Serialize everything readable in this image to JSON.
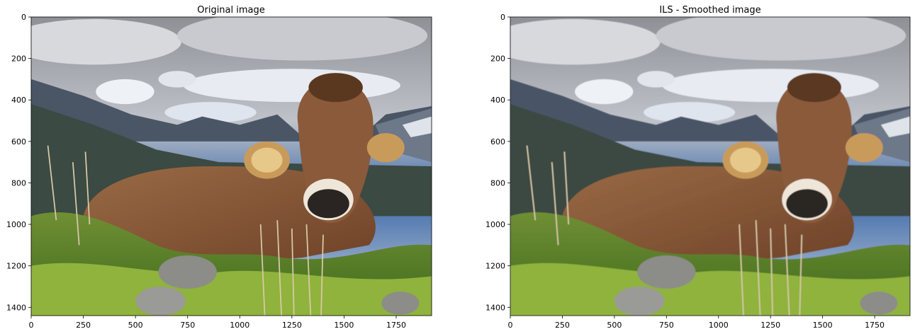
{
  "colors": {
    "sky_cloud": "#c9ccd2",
    "sky_blue": "#3f6aa8",
    "mountain": "#4a5566",
    "cow": "#8a5a3a",
    "grass": "#5f8a2a",
    "rock": "#8c8c88"
  },
  "chart_data": [
    {
      "type": "image",
      "title": "Original image",
      "xlim": [
        0,
        1920
      ],
      "ylim": [
        1440,
        0
      ],
      "xticks": [
        0,
        250,
        500,
        750,
        1000,
        1250,
        1500,
        1750
      ],
      "yticks": [
        0,
        200,
        400,
        600,
        800,
        1000,
        1200,
        1400
      ],
      "smoothed": false
    },
    {
      "type": "image",
      "title": "ILS - Smoothed image",
      "xlim": [
        0,
        1920
      ],
      "ylim": [
        1440,
        0
      ],
      "xticks": [
        0,
        250,
        500,
        750,
        1000,
        1250,
        1500,
        1750
      ],
      "yticks": [
        0,
        200,
        400,
        600,
        800,
        1000,
        1200,
        1400
      ],
      "smoothed": true
    }
  ]
}
